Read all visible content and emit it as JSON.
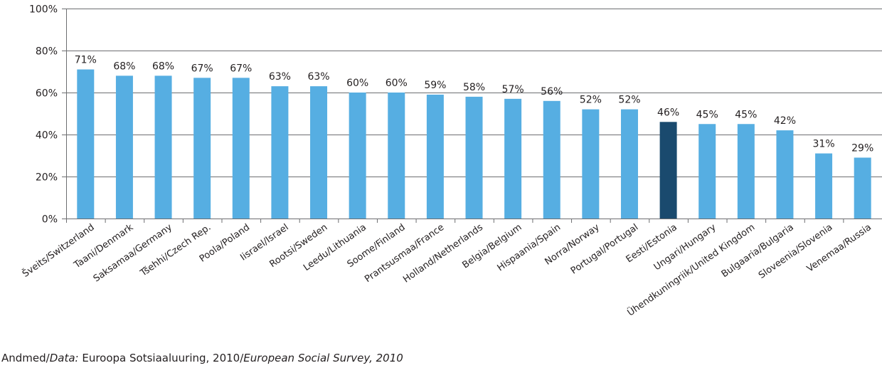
{
  "chart_data": {
    "type": "bar",
    "categories": [
      "Šveits/Switzerland",
      "Taani/Denmark",
      "Saksamaa/Germany",
      "Tšehhi/Czech Rep.",
      "Poola/Poland",
      "Iisrael/Israel",
      "Rootsi/Sweden",
      "Leedu/Lithuania",
      "Soome/Finland",
      "Prantsusmaa/France",
      "Holland/Netherlands",
      "Belgia/Belgium",
      "Hispaania/Spain",
      "Norra/Norway",
      "Portugal/Portugal",
      "Eesti/Estonia",
      "Ungari/Hungary",
      "Ühendkuningriik/United Kingdom",
      "Bulgaaria/Bulgaria",
      "Sloveenia/Slovenia",
      "Venemaa/Russia"
    ],
    "values": [
      71,
      68,
      68,
      67,
      67,
      63,
      63,
      60,
      60,
      59,
      58,
      57,
      56,
      52,
      52,
      46,
      45,
      45,
      42,
      31,
      29
    ],
    "value_labels": [
      "71%",
      "68%",
      "68%",
      "67%",
      "67%",
      "63%",
      "63%",
      "60%",
      "60%",
      "59%",
      "58%",
      "57%",
      "56%",
      "52%",
      "52%",
      "46%",
      "45%",
      "45%",
      "42%",
      "31%",
      "29%"
    ],
    "highlight_index": 15,
    "ylim": [
      0,
      100
    ],
    "yticks": [
      "0%",
      "20%",
      "40%",
      "60%",
      "80%",
      "100%"
    ],
    "grid": true,
    "colors": {
      "bar": "#56aee2",
      "highlight": "#1a4a6e",
      "grid": "#6d6e71"
    }
  },
  "source": {
    "label_a": "Andmed/",
    "label_b": "Data:",
    "text_a": " Euroopa Sotsiaaluuring, 2010/",
    "text_b": "European Social Survey, 2010"
  }
}
